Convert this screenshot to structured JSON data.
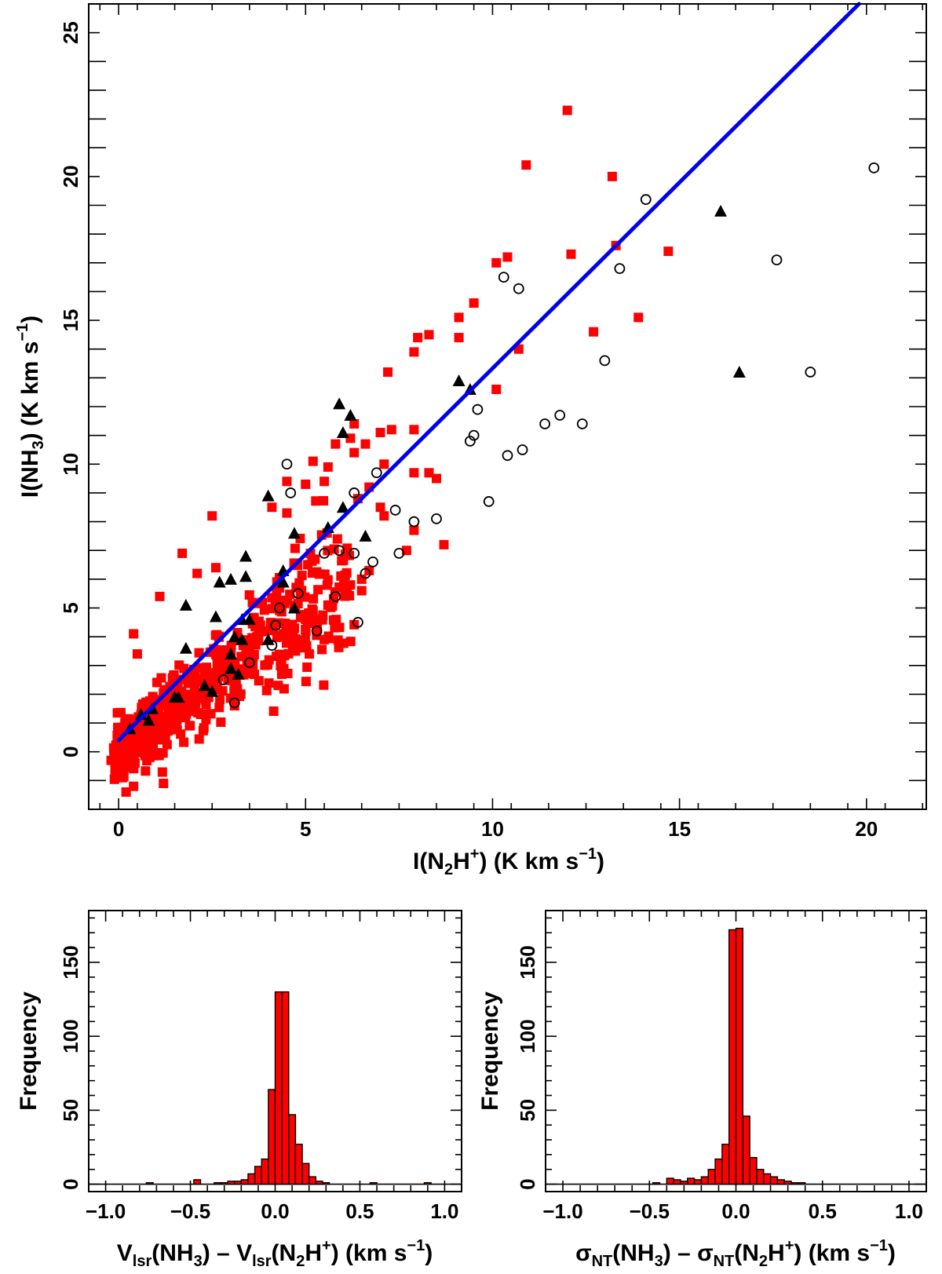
{
  "colors": {
    "square": "#ff0000",
    "triangle": "#000000",
    "circle": "#000000",
    "fit": "#0000ee",
    "bar": "#ff0000"
  },
  "chart_data": [
    {
      "type": "scatter",
      "title": "",
      "xlabel": {
        "pre": "I(N",
        "sub": "2",
        "mid": "H",
        "sup": "+",
        "post": ") (K km s",
        "sup2": "−1",
        "end": ")"
      },
      "ylabel": {
        "pre": "I(NH",
        "sub": "3",
        "post": ") (K km s",
        "sup": "−1",
        "end": ")"
      },
      "xlim": [
        -0.8,
        21.6
      ],
      "ylim": [
        -2.0,
        26.0
      ],
      "xticks": [
        0,
        5,
        10,
        15,
        20
      ],
      "yticks": [
        0,
        5,
        10,
        15,
        20,
        25
      ],
      "fit_line": {
        "x": [
          0.0,
          19.8
        ],
        "y": [
          0.4,
          26.0
        ]
      },
      "series": [
        {
          "name": "red squares",
          "marker": "square",
          "seed": 7,
          "cloud_count": 640,
          "points": [
            [
              12.0,
              22.3
            ],
            [
              10.9,
              20.4
            ],
            [
              13.2,
              20.0
            ],
            [
              14.7,
              17.4
            ],
            [
              12.1,
              17.3
            ],
            [
              13.3,
              17.6
            ],
            [
              10.4,
              17.2
            ],
            [
              10.1,
              17.0
            ],
            [
              13.9,
              15.1
            ],
            [
              9.5,
              15.6
            ],
            [
              9.1,
              15.1
            ],
            [
              12.7,
              14.6
            ],
            [
              10.7,
              14.0
            ],
            [
              8.3,
              14.5
            ],
            [
              8.0,
              14.4
            ],
            [
              9.1,
              14.4
            ],
            [
              7.9,
              13.9
            ],
            [
              7.2,
              13.2
            ],
            [
              10.1,
              12.6
            ],
            [
              7.3,
              11.2
            ],
            [
              7.0,
              11.1
            ],
            [
              7.9,
              11.2
            ],
            [
              6.3,
              11.4
            ],
            [
              6.2,
              10.9
            ],
            [
              5.8,
              10.7
            ],
            [
              6.3,
              10.4
            ],
            [
              6.6,
              10.7
            ],
            [
              7.1,
              10.0
            ],
            [
              5.2,
              10.1
            ],
            [
              5.6,
              9.9
            ],
            [
              7.9,
              9.7
            ],
            [
              8.3,
              9.7
            ],
            [
              8.5,
              9.5
            ],
            [
              5.5,
              9.4
            ],
            [
              5.0,
              9.3
            ],
            [
              4.5,
              9.4
            ],
            [
              6.7,
              9.2
            ],
            [
              6.4,
              8.8
            ],
            [
              7.0,
              8.5
            ],
            [
              7.1,
              8.2
            ],
            [
              4.1,
              8.5
            ],
            [
              4.5,
              8.3
            ],
            [
              7.9,
              7.7
            ],
            [
              8.7,
              7.2
            ],
            [
              7.7,
              7.0
            ],
            [
              6.7,
              6.3
            ],
            [
              6.5,
              6.0
            ],
            [
              6.2,
              5.8
            ],
            [
              6.5,
              5.6
            ],
            [
              5.6,
              5.1
            ],
            [
              5.2,
              4.9
            ],
            [
              5.0,
              4.6
            ],
            [
              5.1,
              3.4
            ],
            [
              5.5,
              3.9
            ],
            [
              4.7,
              4.3
            ],
            [
              4.4,
              4.1
            ],
            [
              3.6,
              3.3
            ],
            [
              2.5,
              8.2
            ],
            [
              1.7,
              6.9
            ],
            [
              2.1,
              6.2
            ],
            [
              2.6,
              6.4
            ],
            [
              1.1,
              5.4
            ],
            [
              0.4,
              4.1
            ],
            [
              0.5,
              3.4
            ],
            [
              3.1,
              1.6
            ],
            [
              2.2,
              1.3
            ],
            [
              2.3,
              2.6
            ],
            [
              1.2,
              -1.1
            ],
            [
              0.2,
              -1.4
            ],
            [
              0.4,
              -1.2
            ],
            [
              0.1,
              -0.9
            ],
            [
              -0.2,
              -0.3
            ]
          ]
        },
        {
          "name": "black triangles",
          "marker": "triangle",
          "points": [
            [
              16.1,
              18.8
            ],
            [
              16.6,
              13.2
            ],
            [
              9.1,
              12.9
            ],
            [
              9.4,
              12.6
            ],
            [
              5.9,
              12.1
            ],
            [
              6.2,
              11.7
            ],
            [
              6.0,
              11.1
            ],
            [
              4.0,
              8.9
            ],
            [
              6.0,
              8.5
            ],
            [
              5.6,
              7.8
            ],
            [
              4.7,
              7.6
            ],
            [
              6.6,
              7.5
            ],
            [
              4.4,
              6.3
            ],
            [
              3.4,
              6.8
            ],
            [
              3.4,
              6.1
            ],
            [
              3.0,
              6.0
            ],
            [
              2.7,
              5.9
            ],
            [
              1.8,
              5.1
            ],
            [
              4.4,
              5.9
            ],
            [
              4.7,
              5.0
            ],
            [
              2.6,
              4.7
            ],
            [
              3.5,
              4.6
            ],
            [
              3.3,
              4.6
            ],
            [
              3.1,
              4.0
            ],
            [
              3.3,
              3.9
            ],
            [
              4.0,
              3.9
            ],
            [
              1.8,
              3.6
            ],
            [
              3.0,
              3.4
            ],
            [
              3.0,
              2.9
            ],
            [
              3.2,
              2.7
            ],
            [
              2.3,
              2.3
            ],
            [
              2.5,
              2.1
            ],
            [
              1.5,
              1.9
            ],
            [
              1.6,
              1.9
            ],
            [
              0.6,
              1.3
            ],
            [
              0.9,
              1.5
            ],
            [
              0.8,
              1.1
            ],
            [
              0.3,
              0.8
            ]
          ]
        },
        {
          "name": "open circles",
          "marker": "circle",
          "points": [
            [
              20.2,
              20.3
            ],
            [
              14.1,
              19.2
            ],
            [
              17.6,
              17.1
            ],
            [
              10.3,
              16.5
            ],
            [
              10.7,
              16.1
            ],
            [
              13.4,
              16.8
            ],
            [
              13.0,
              13.6
            ],
            [
              18.5,
              13.2
            ],
            [
              9.6,
              11.9
            ],
            [
              11.8,
              11.7
            ],
            [
              11.4,
              11.4
            ],
            [
              12.4,
              11.4
            ],
            [
              9.5,
              11.0
            ],
            [
              9.4,
              10.8
            ],
            [
              10.8,
              10.5
            ],
            [
              10.4,
              10.3
            ],
            [
              4.5,
              10.0
            ],
            [
              6.9,
              9.7
            ],
            [
              4.6,
              9.0
            ],
            [
              6.3,
              9.0
            ],
            [
              9.9,
              8.7
            ],
            [
              7.4,
              8.4
            ],
            [
              8.5,
              8.1
            ],
            [
              7.9,
              8.0
            ],
            [
              5.9,
              7.0
            ],
            [
              5.5,
              6.9
            ],
            [
              6.3,
              6.9
            ],
            [
              7.5,
              6.9
            ],
            [
              6.8,
              6.6
            ],
            [
              6.6,
              6.2
            ],
            [
              4.8,
              5.5
            ],
            [
              5.8,
              5.4
            ],
            [
              4.3,
              5.0
            ],
            [
              4.2,
              4.4
            ],
            [
              6.4,
              4.5
            ],
            [
              5.3,
              4.2
            ],
            [
              4.1,
              3.7
            ],
            [
              3.5,
              3.1
            ],
            [
              2.8,
              2.5
            ],
            [
              3.1,
              1.7
            ]
          ]
        }
      ]
    },
    {
      "type": "bar",
      "title": "",
      "xlabel": {
        "a": "V",
        "a_sub": "lsr",
        "b": "(NH",
        "b_sub": "3",
        "c": ") – V",
        "c_sub": "lsr",
        "d": "(N",
        "d_sub": "2",
        "e": "H",
        "e_sup": "+",
        "f": ") (km s",
        "f_sup": "−1",
        "g": ")"
      },
      "ylabel": "Frequency",
      "xlim": [
        -1.1,
        1.1
      ],
      "ylim": [
        -5,
        185
      ],
      "xticks": [
        -1.0,
        -0.5,
        0.0,
        0.5,
        1.0
      ],
      "xtick_labels": [
        "−1.0",
        "−0.5",
        "0.0",
        "0.5",
        "1.0"
      ],
      "yticks": [
        0,
        50,
        100,
        150
      ],
      "bin_width": 0.04,
      "bins_start": [
        -0.76,
        -0.48,
        -0.36,
        -0.32,
        -0.28,
        -0.24,
        -0.2,
        -0.16,
        -0.12,
        -0.08,
        -0.04,
        0.0,
        0.04,
        0.08,
        0.12,
        0.16,
        0.2,
        0.24,
        0.28,
        0.56,
        0.88
      ],
      "values": [
        1,
        3,
        1,
        1,
        2,
        2,
        3,
        7,
        12,
        17,
        64,
        130,
        130,
        47,
        27,
        14,
        5,
        2,
        1,
        1,
        1
      ]
    },
    {
      "type": "bar",
      "title": "",
      "xlabel": {
        "a": "σ",
        "a_sub": "NT",
        "b": "(NH",
        "b_sub": "3",
        "c": ") – σ",
        "c_sub": "NT",
        "d": "(N",
        "d_sub": "2",
        "e": "H",
        "e_sup": "+",
        "f": ") (km s",
        "f_sup": "−1",
        "g": ")"
      },
      "ylabel": "Frequency",
      "xlim": [
        -1.1,
        1.1
      ],
      "ylim": [
        -5,
        185
      ],
      "xticks": [
        -1.0,
        -0.5,
        0.0,
        0.5,
        1.0
      ],
      "xtick_labels": [
        "−1.0",
        "−0.5",
        "0.0",
        "0.5",
        "1.0"
      ],
      "yticks": [
        0,
        50,
        100,
        150
      ],
      "bin_width": 0.04,
      "bins_start": [
        -0.48,
        -0.4,
        -0.36,
        -0.32,
        -0.28,
        -0.24,
        -0.2,
        -0.16,
        -0.12,
        -0.08,
        -0.04,
        0.0,
        0.04,
        0.08,
        0.12,
        0.16,
        0.2,
        0.24,
        0.28,
        0.32,
        0.36
      ],
      "values": [
        1,
        4,
        3,
        2,
        4,
        3,
        5,
        10,
        17,
        27,
        172,
        173,
        46,
        18,
        10,
        7,
        5,
        3,
        2,
        1,
        1
      ]
    }
  ]
}
